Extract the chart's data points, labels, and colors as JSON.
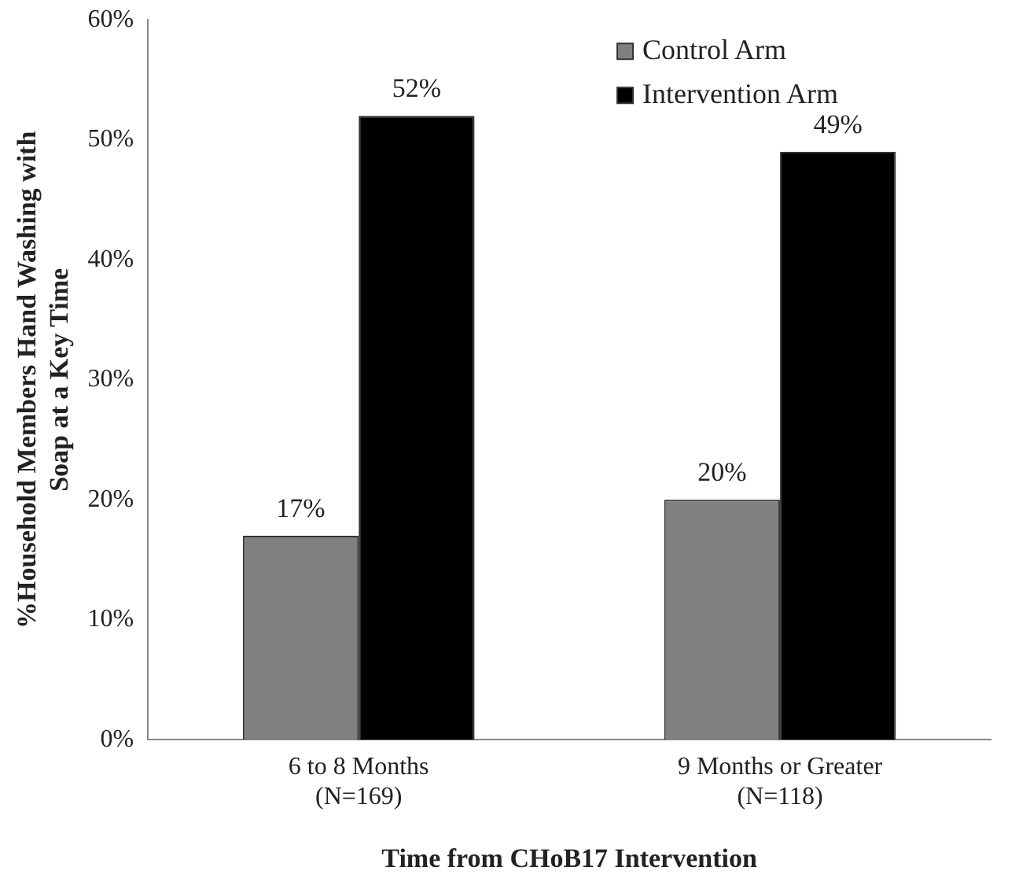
{
  "chart_data": {
    "type": "bar",
    "xlabel": "Time from CHoB17 Intervention",
    "ylabel": "%Household Members Hand Washing with\nSoap at a Key Time",
    "categories": [
      "6 to 8 Months\n(N=169)",
      "9 Months or Greater\n(N=118)"
    ],
    "series": [
      {
        "name": "Control Arm",
        "color": "#808080",
        "values": [
          17,
          20
        ]
      },
      {
        "name": "Intervention Arm",
        "color": "#000000",
        "values": [
          52,
          49
        ]
      }
    ],
    "ylim": [
      0,
      60
    ],
    "yticks": [
      {
        "value": 0,
        "label": "0%"
      },
      {
        "value": 10,
        "label": "10%"
      },
      {
        "value": 20,
        "label": "20%"
      },
      {
        "value": 30,
        "label": "30%"
      },
      {
        "value": 40,
        "label": "40%"
      },
      {
        "value": 50,
        "label": "50%"
      },
      {
        "value": 60,
        "label": "60%"
      }
    ],
    "value_labels": [
      [
        "17%",
        "20%"
      ],
      [
        "52%",
        "49%"
      ]
    ],
    "grid": false,
    "legend": "top right"
  }
}
